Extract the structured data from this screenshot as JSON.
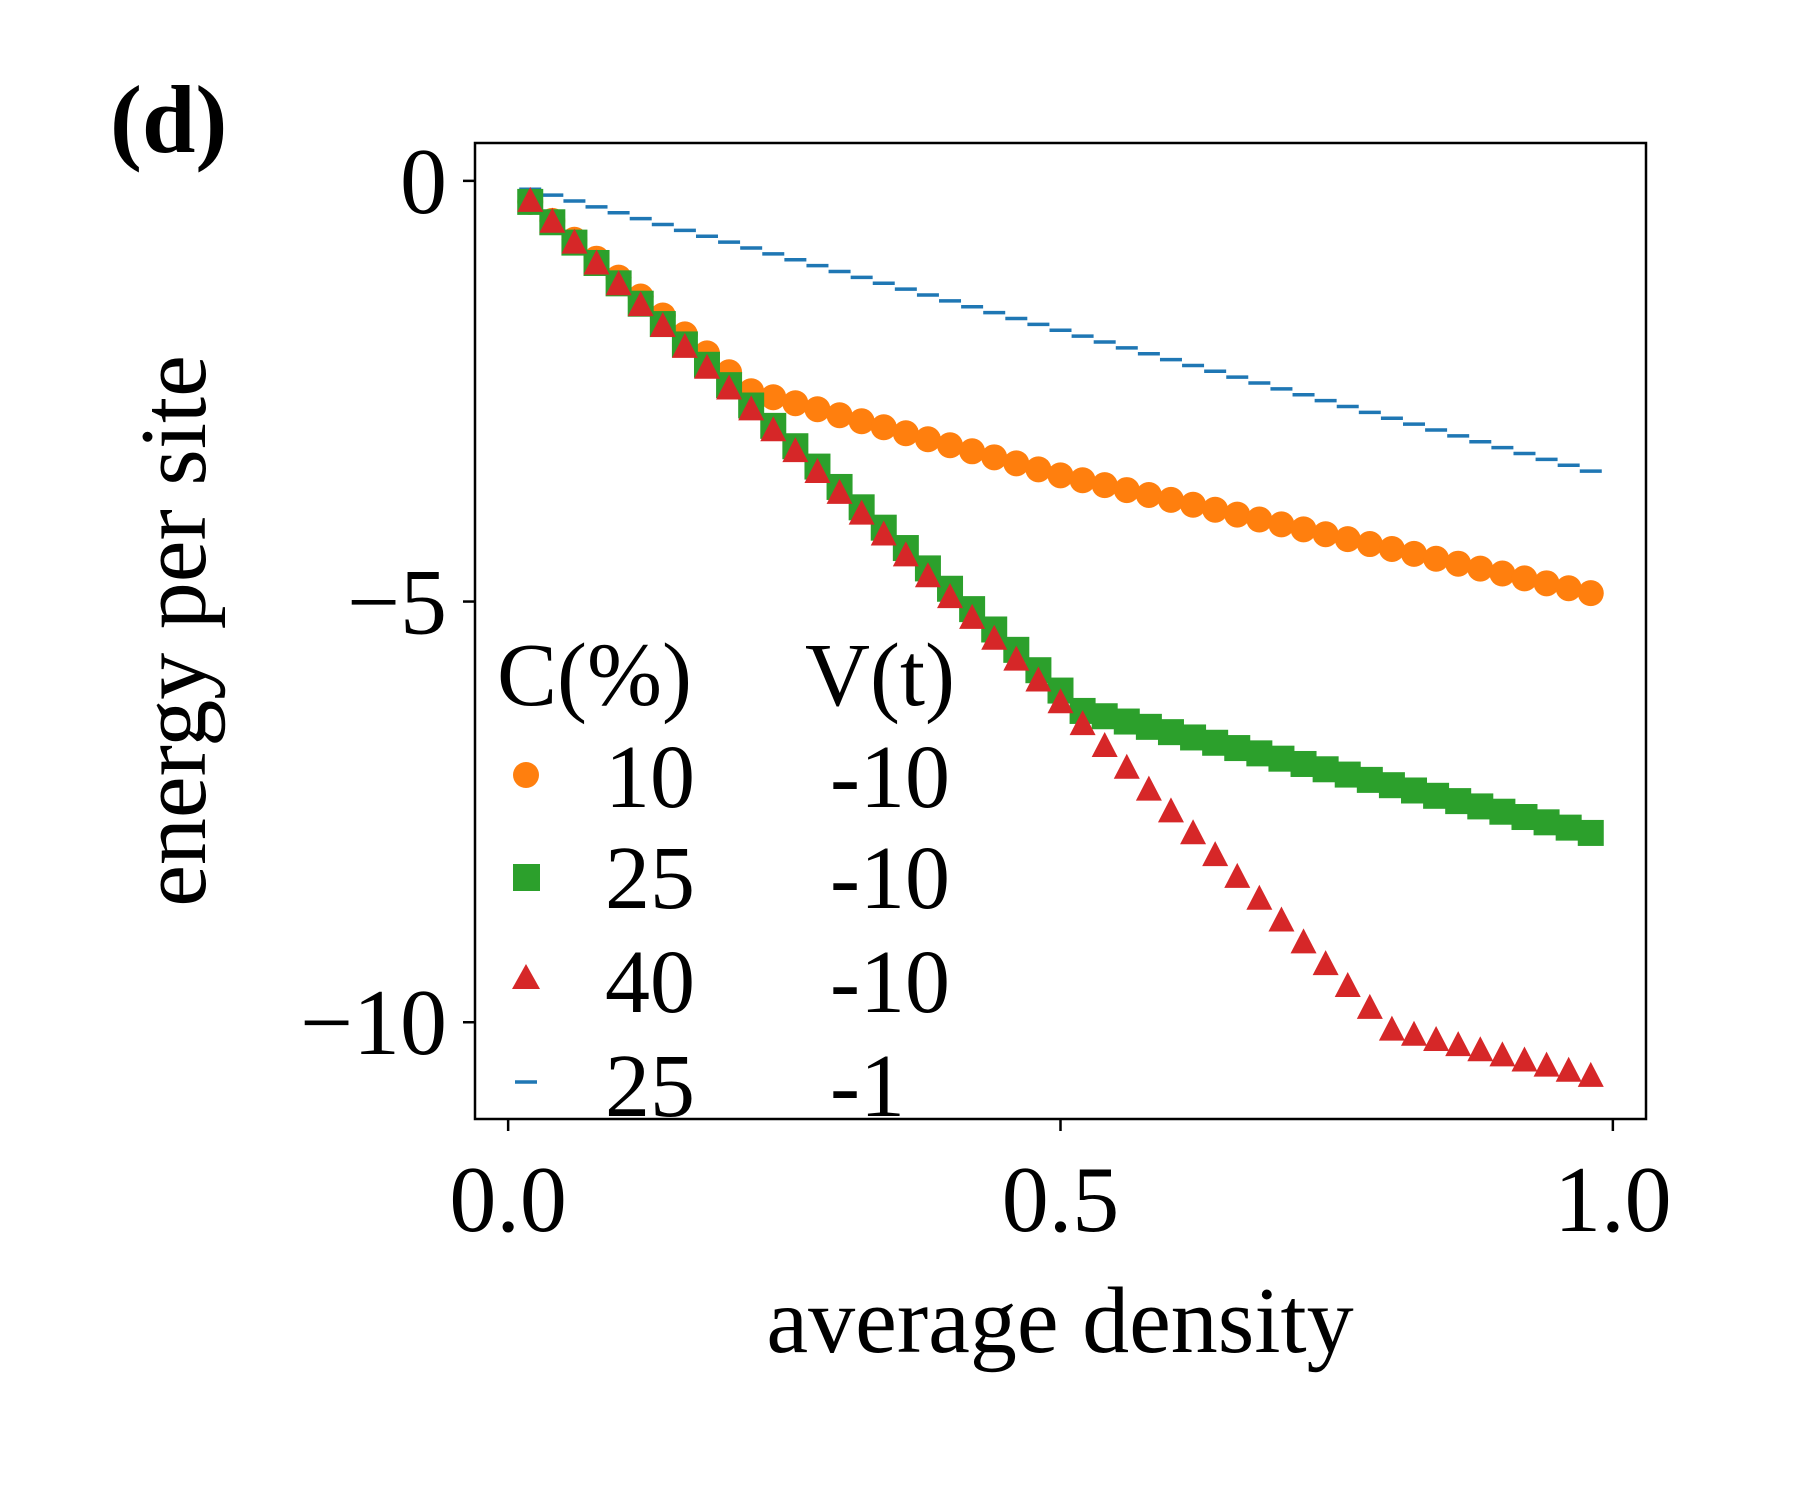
{
  "panel_label": "(d)",
  "chart_data": {
    "type": "scatter",
    "title": "",
    "xlabel": "average density",
    "ylabel": "energy per site",
    "xlim": [
      -0.03,
      1.03
    ],
    "ylim": [
      -11.15,
      0.45
    ],
    "xticks": [
      0.0,
      0.5,
      1.0
    ],
    "xtick_labels": [
      "0.0",
      "0.5",
      "1.0"
    ],
    "yticks": [
      0,
      -5,
      -10
    ],
    "ytick_labels": [
      "0",
      "−5",
      "−10"
    ],
    "grid": false,
    "legend": {
      "placement": "lower-left",
      "header": [
        "C(%)",
        "V(t)"
      ],
      "entries": [
        {
          "c": "10",
          "v": "-10"
        },
        {
          "c": "25",
          "v": "-10"
        },
        {
          "c": "40",
          "v": "-10"
        },
        {
          "c": "25",
          "v": "-1"
        }
      ]
    },
    "series": [
      {
        "name": "C=10%, V=-10t",
        "marker": "circle",
        "color": "#ff7f0e",
        "x_start": 0.02,
        "x_step": 0.02,
        "count": 49,
        "curve": [
          [
            0.02,
            -0.25
          ],
          [
            0.22,
            -2.5
          ],
          [
            0.5,
            -3.5
          ],
          [
            0.98,
            -4.9
          ]
        ]
      },
      {
        "name": "C=25%, V=-10t",
        "marker": "square",
        "color": "#2ca02c",
        "x_start": 0.02,
        "x_step": 0.02,
        "count": 49,
        "curve": [
          [
            0.02,
            -0.25
          ],
          [
            0.52,
            -6.3
          ],
          [
            0.98,
            -7.75
          ]
        ]
      },
      {
        "name": "C=40%, V=-10t",
        "marker": "triangle",
        "color": "#d62728",
        "x_start": 0.02,
        "x_step": 0.02,
        "count": 49,
        "curve": [
          [
            0.02,
            -0.25
          ],
          [
            0.48,
            -5.95
          ],
          [
            0.8,
            -10.1
          ],
          [
            0.98,
            -10.65
          ]
        ]
      },
      {
        "name": "C=25%, V=-1t",
        "marker": "hline",
        "color": "#1f77b4",
        "x_start": 0.02,
        "x_step": 0.02,
        "count": 49,
        "curve": [
          [
            0.02,
            -0.1
          ],
          [
            0.98,
            -3.45
          ]
        ]
      }
    ]
  }
}
